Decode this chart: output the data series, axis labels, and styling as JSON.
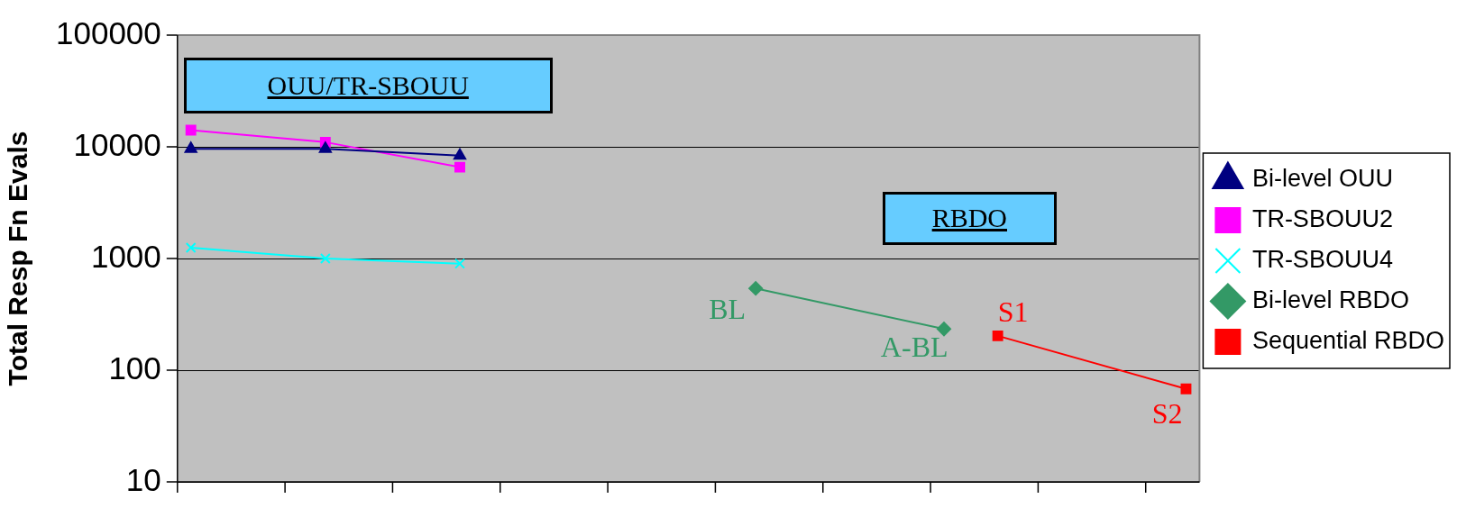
{
  "chart_data": {
    "type": "line",
    "ylabel": "Total Resp Fn Evals",
    "log": "y",
    "grid": "y",
    "legend": "right",
    "tick_labels": "y",
    "categories": [
      null,
      null,
      null,
      null,
      null,
      null,
      null,
      null,
      null,
      null,
      null,
      null,
      null,
      null,
      null,
      null,
      null,
      null,
      null,
      null,
      null,
      null,
      null,
      null,
      null,
      null,
      null,
      null,
      null,
      null,
      null,
      null,
      null,
      null,
      null,
      null,
      null,
      null
    ],
    "ylim": [
      10,
      100000
    ],
    "yticks": [
      10,
      100,
      1000,
      10000,
      100000
    ],
    "series": [
      {
        "name": "Bi-level OUU",
        "color": "#000080",
        "marker": "triangle",
        "values": [
          9600,
          null,
          null,
          null,
          null,
          9600,
          null,
          null,
          null,
          null,
          8360,
          null,
          null,
          null,
          null,
          null,
          null,
          null,
          null,
          null,
          null,
          null,
          null,
          null,
          null,
          null,
          null,
          null,
          null,
          null,
          null,
          null,
          null,
          null,
          null,
          null,
          null,
          null
        ]
      },
      {
        "name": "TR-SBOUU2",
        "color": "#ff00ff",
        "marker": "square",
        "values": [
          14100,
          null,
          null,
          null,
          null,
          11000,
          null,
          null,
          null,
          null,
          6570,
          null,
          null,
          null,
          null,
          null,
          null,
          null,
          null,
          null,
          null,
          null,
          null,
          null,
          null,
          null,
          null,
          null,
          null,
          null,
          null,
          null,
          null,
          null,
          null,
          null,
          null,
          null
        ]
      },
      {
        "name": "TR-SBOUU4",
        "color": "#00ffff",
        "marker": "cross",
        "values": [
          1250,
          null,
          null,
          null,
          null,
          1000,
          null,
          null,
          null,
          null,
          900,
          null,
          null,
          null,
          null,
          null,
          null,
          null,
          null,
          null,
          null,
          null,
          null,
          null,
          null,
          null,
          null,
          null,
          null,
          null,
          null,
          null,
          null,
          null,
          null,
          null,
          null,
          null
        ]
      },
      {
        "name": "Bi-level RBDO",
        "color": "#339966",
        "marker": "diamond",
        "values": [
          null,
          null,
          null,
          null,
          null,
          null,
          null,
          null,
          null,
          null,
          null,
          null,
          null,
          null,
          null,
          null,
          null,
          null,
          null,
          null,
          null,
          540,
          null,
          null,
          null,
          null,
          null,
          null,
          234,
          null,
          null,
          null,
          null,
          null,
          null,
          null,
          null,
          null
        ]
      },
      {
        "name": "Sequential RBDO",
        "color": "#ff0000",
        "marker": "square",
        "values": [
          null,
          null,
          null,
          null,
          null,
          null,
          null,
          null,
          null,
          null,
          null,
          null,
          null,
          null,
          null,
          null,
          null,
          null,
          null,
          null,
          null,
          null,
          null,
          null,
          null,
          null,
          null,
          null,
          null,
          null,
          203,
          null,
          null,
          null,
          null,
          null,
          null,
          68
        ]
      }
    ],
    "annotations": [
      "OUU/TR-SBOUU",
      "RBDO",
      "BL",
      "A-BL",
      {
        "text": "S1",
        "y": 203
      },
      {
        "text": "S2",
        "y": 68
      }
    ]
  }
}
